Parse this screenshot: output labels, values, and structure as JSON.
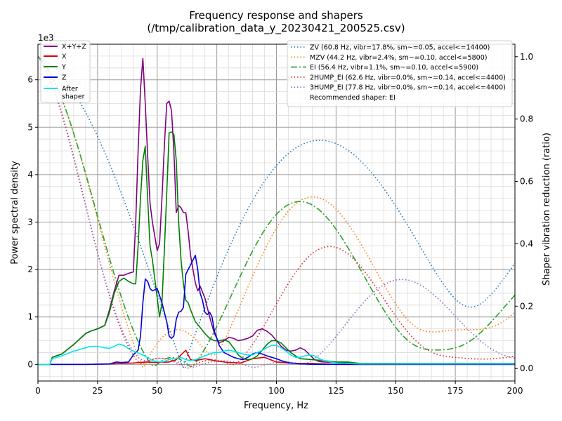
{
  "chart_data": {
    "type": "line",
    "title_line1": "Frequency response and shapers",
    "title_line2": "(/tmp/calibration_data_y_20230421_200525.csv)",
    "xlabel": "Frequency, Hz",
    "ylabel_left": "Power spectral density",
    "ylabel_right": "Shaper vibration reduction (ratio)",
    "y_scale_label": "1e3",
    "xlim": [
      0,
      200
    ],
    "ylim_left": [
      -0.35,
      6.75
    ],
    "ylim_right": [
      -0.04,
      1.04
    ],
    "x_ticks": [
      "0",
      "25",
      "50",
      "75",
      "100",
      "125",
      "150",
      "175",
      "200"
    ],
    "x_tick_values": [
      0,
      25,
      50,
      75,
      100,
      125,
      150,
      175,
      200
    ],
    "y_ticks_left": [
      "0",
      "1",
      "2",
      "3",
      "4",
      "5",
      "6"
    ],
    "y_tick_values_left": [
      0,
      1,
      2,
      3,
      4,
      5,
      6
    ],
    "y_ticks_right": [
      "0.0",
      "0.2",
      "0.4",
      "0.6",
      "0.8",
      "1.0"
    ],
    "y_tick_values_right": [
      0,
      0.2,
      0.4,
      0.6,
      0.8,
      1.0
    ],
    "grid": true,
    "legend_left_position": "upper-left",
    "legend_right_position": "upper-right",
    "psd_series": [
      {
        "name": "X+Y+Z",
        "color": "#800080",
        "x": [
          0,
          5,
          6,
          10,
          15,
          20,
          22,
          25,
          28,
          30,
          32,
          34,
          36,
          38,
          40,
          41,
          42,
          43,
          44,
          45,
          46,
          47,
          48,
          50,
          51,
          52,
          53,
          54,
          55,
          56,
          57,
          58,
          59,
          60,
          61,
          62,
          63,
          64,
          65,
          66,
          67,
          68,
          70,
          72,
          74,
          76,
          78,
          80,
          82,
          84,
          86,
          88,
          90,
          92,
          94,
          96,
          98,
          100,
          102,
          104,
          106,
          108,
          110,
          112,
          114,
          116,
          118,
          120,
          125,
          130,
          135,
          200
        ],
        "y": [
          0,
          0,
          0.15,
          0.22,
          0.42,
          0.65,
          0.7,
          0.75,
          0.82,
          1.15,
          1.55,
          1.88,
          1.88,
          1.92,
          1.95,
          3.0,
          4.5,
          5.8,
          6.45,
          5.5,
          4.4,
          3.4,
          3.0,
          2.4,
          2.55,
          3.5,
          4.6,
          5.5,
          5.55,
          5.35,
          4.5,
          3.2,
          3.35,
          3.3,
          3.2,
          3.2,
          2.8,
          2.3,
          2.0,
          1.72,
          1.55,
          1.65,
          1.4,
          1.0,
          0.65,
          0.45,
          0.5,
          0.57,
          0.55,
          0.5,
          0.52,
          0.55,
          0.6,
          0.72,
          0.75,
          0.7,
          0.62,
          0.5,
          0.38,
          0.3,
          0.28,
          0.3,
          0.35,
          0.3,
          0.2,
          0.1,
          0.06,
          0.05,
          0.04,
          0.03,
          0.02,
          0.02
        ]
      },
      {
        "name": "X",
        "color": "#dd0000",
        "x": [
          0,
          20,
          30,
          35,
          40,
          45,
          50,
          55,
          58,
          60,
          62,
          63,
          64,
          66,
          68,
          70,
          72,
          75,
          80,
          85,
          90,
          95,
          100,
          105,
          110,
          115,
          120,
          125,
          200
        ],
        "y": [
          0,
          0,
          0.01,
          0.02,
          0.03,
          0.05,
          0.04,
          0.05,
          0.1,
          0.2,
          0.3,
          0.2,
          0.1,
          0.08,
          0.1,
          0.12,
          0.1,
          0.07,
          0.04,
          0.03,
          0.12,
          0.15,
          0.05,
          0.03,
          0.02,
          0.02,
          0.01,
          0,
          0
        ]
      },
      {
        "name": "Y",
        "color": "#008000",
        "x": [
          0,
          5,
          6,
          10,
          15,
          20,
          22,
          25,
          28,
          30,
          32,
          34,
          36,
          38,
          40,
          41,
          42,
          43,
          44,
          45,
          46,
          47,
          48,
          50,
          51,
          52,
          53,
          54,
          55,
          56,
          57,
          58,
          59,
          60,
          61,
          62,
          63,
          64,
          66,
          68,
          70,
          72,
          74,
          76,
          78,
          80,
          82,
          84,
          86,
          88,
          90,
          92,
          94,
          96,
          98,
          100,
          102,
          104,
          106,
          108,
          110,
          115,
          120,
          125,
          130,
          135,
          200
        ],
        "y": [
          0,
          0,
          0.15,
          0.22,
          0.42,
          0.65,
          0.7,
          0.75,
          0.82,
          1.1,
          1.5,
          1.75,
          1.82,
          1.75,
          1.7,
          1.7,
          2.5,
          3.5,
          4.3,
          4.6,
          3.5,
          2.5,
          2.2,
          1.4,
          1.0,
          1.3,
          2.4,
          3.6,
          4.88,
          4.9,
          4.85,
          4.3,
          3.0,
          2.2,
          1.7,
          1.35,
          1.3,
          1.15,
          0.9,
          0.78,
          0.65,
          0.55,
          0.5,
          0.5,
          0.52,
          0.48,
          0.35,
          0.2,
          0.12,
          0.1,
          0.12,
          0.18,
          0.3,
          0.42,
          0.5,
          0.5,
          0.45,
          0.35,
          0.25,
          0.18,
          0.12,
          0.1,
          0.08,
          0.05,
          0.05,
          0.02,
          0.01
        ]
      },
      {
        "name": "Z",
        "color": "#0000dd",
        "x": [
          0,
          20,
          30,
          33,
          35,
          38,
          40,
          41,
          42,
          43,
          44,
          45,
          46,
          47,
          48,
          50,
          51,
          52,
          53,
          54,
          55,
          56,
          57,
          58,
          59,
          60,
          61,
          62,
          63,
          64,
          65,
          66,
          67,
          68,
          69,
          70,
          71,
          72,
          73,
          74,
          75,
          76,
          78,
          80,
          82,
          84,
          86,
          88,
          90,
          92,
          94,
          96,
          98,
          100,
          102,
          104,
          106,
          108,
          110,
          112,
          115,
          120,
          125,
          130,
          200
        ],
        "y": [
          0,
          0,
          0.01,
          0.05,
          0.04,
          0.05,
          0.2,
          0.25,
          0.3,
          0.6,
          1.3,
          1.8,
          1.75,
          1.6,
          1.55,
          1.6,
          1.45,
          1.3,
          1.1,
          0.9,
          0.6,
          0.55,
          0.6,
          0.95,
          1.1,
          1.12,
          1.2,
          1.9,
          2.0,
          2.1,
          2.2,
          2.3,
          2.0,
          1.5,
          1.35,
          1.1,
          1.05,
          1.1,
          1.0,
          0.7,
          0.55,
          0.4,
          0.25,
          0.2,
          0.15,
          0.12,
          0.1,
          0.15,
          0.22,
          0.25,
          0.22,
          0.18,
          0.15,
          0.12,
          0.08,
          0.05,
          0.03,
          0.02,
          0.01,
          0.01,
          0,
          0,
          0,
          0,
          0
        ]
      },
      {
        "name": "After\nshaper",
        "color": "#00e5ee",
        "x": [
          0,
          5,
          6,
          10,
          15,
          20,
          22,
          25,
          28,
          30,
          32,
          34,
          36,
          38,
          40,
          42,
          44,
          46,
          48,
          50,
          52,
          54,
          56,
          58,
          60,
          62,
          64,
          66,
          68,
          70,
          72,
          74,
          76,
          78,
          80,
          82,
          84,
          86,
          88,
          90,
          92,
          94,
          96,
          98,
          100,
          102,
          104,
          106,
          108,
          110,
          112,
          114,
          116,
          118,
          120,
          125,
          130,
          135,
          200
        ],
        "y": [
          0,
          0,
          0.12,
          0.18,
          0.28,
          0.35,
          0.38,
          0.38,
          0.35,
          0.34,
          0.38,
          0.43,
          0.4,
          0.33,
          0.28,
          0.24,
          0.2,
          0.14,
          0.08,
          0.06,
          0.05,
          0.08,
          0.12,
          0.12,
          0.15,
          0.1,
          0.08,
          0.1,
          0.14,
          0.18,
          0.22,
          0.25,
          0.25,
          0.28,
          0.3,
          0.28,
          0.25,
          0.22,
          0.2,
          0.2,
          0.25,
          0.3,
          0.35,
          0.4,
          0.4,
          0.35,
          0.28,
          0.2,
          0.15,
          0.15,
          0.18,
          0.2,
          0.18,
          0.12,
          0.08,
          0.03,
          0.02,
          0.01,
          0.01
        ]
      }
    ],
    "shaper_series": [
      {
        "name": "ZV (60.8 Hz, vibr=17.8%, sm~=0.05, accel<=14400)",
        "color": "#1f77b4",
        "style": "dotted",
        "freq": 60.8,
        "zeta": 0.1,
        "type": "zv",
        "scale": 1.0
      },
      {
        "name": "MZV (44.2 Hz, vibr=2.4%, sm~=0.10, accel<=5800)",
        "color": "#ff7f0e",
        "style": "dotted",
        "freq": 44.2,
        "zeta": 0.1,
        "type": "mzv",
        "scale": 1.0
      },
      {
        "name": "EI (56.4 Hz, vibr=1.1%, sm~=0.10, accel<=5900)",
        "color": "#2ca02c",
        "style": "dashdot",
        "freq": 56.4,
        "zeta": 0.1,
        "type": "ei",
        "scale": 1.0
      },
      {
        "name": "2HUMP_EI (62.6 Hz, vibr=0.0%, sm~=0.14, accel<=4400)",
        "color": "#d62728",
        "style": "dotted",
        "freq": 62.6,
        "zeta": 0.1,
        "type": "2hump",
        "scale": 1.0
      },
      {
        "name": "3HUMP_EI (77.8 Hz, vibr=0.0%, sm~=0.14, accel<=4400)",
        "color": "#9467bd",
        "style": "dotted",
        "freq": 77.8,
        "zeta": 0.1,
        "type": "3hump",
        "scale": 1.0
      }
    ],
    "recommended_text": "Recommended shaper: EI"
  }
}
